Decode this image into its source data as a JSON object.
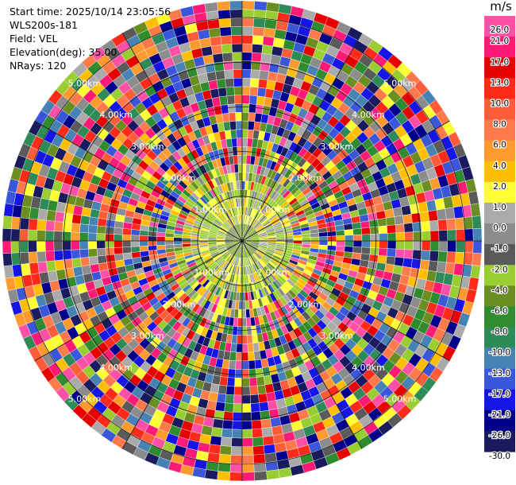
{
  "header": {
    "start_time": "Start time: 2025/10/14 23:05:56",
    "instrument": "WLS200s-181",
    "field": "Field: VEL",
    "elevation": "Elevation(deg): 35.00",
    "nrays": "NRays: 120"
  },
  "chart_data": {
    "type": "heatmap",
    "projection": "polar-ppi",
    "field": "VEL",
    "n_rays": 120,
    "range_rings": [
      "1.00km",
      "2.00km",
      "3.00km",
      "4.00km",
      "5.00km"
    ],
    "colorbar": {
      "unit": "m/s",
      "ticks": [
        "26.0",
        "21.0",
        "17.0",
        "13.0",
        "10.0",
        "8.0",
        "6.0",
        "4.0",
        "2.0",
        "1.0",
        "0.0",
        "-1.0",
        "-2.0",
        "-4.0",
        "-6.0",
        "-8.0",
        "-10.0",
        "-13.0",
        "-17.0",
        "-21.0",
        "-26.0",
        "-30.0"
      ],
      "colors": [
        "#ff4fa6",
        "#ff1a75",
        "#e60000",
        "#ff2a1a",
        "#ff5c3a",
        "#ff7a4a",
        "#ff9a2e",
        "#ffbf00",
        "#ffff33",
        "#aaaaaa",
        "#8c8c8c",
        "#5a5a5a",
        "#9acd32",
        "#6b8e23",
        "#2e8b2e",
        "#2e8b57",
        "#4682b4",
        "#3a56d9",
        "#1515e6",
        "#00008b",
        "#1a1a5e"
      ]
    }
  }
}
